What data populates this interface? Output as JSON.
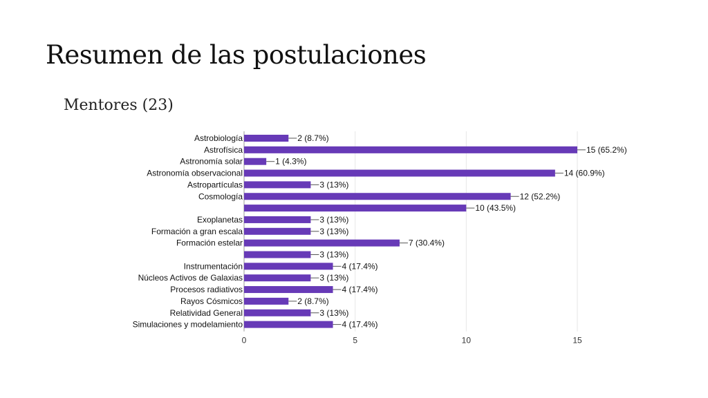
{
  "slide": {
    "title": "Resumen de las postulaciones",
    "subtitle": "Mentores (23)"
  },
  "colors": {
    "bar": "#673ab7",
    "grid": "#e6e6e6",
    "axis": "#999999",
    "text": "#111111"
  },
  "chart_data": {
    "type": "bar",
    "orientation": "horizontal",
    "title": "",
    "xlabel": "",
    "ylabel": "",
    "xlim": [
      0,
      15
    ],
    "x_ticks": [
      0,
      5,
      10,
      15
    ],
    "grid": true,
    "legend": "none",
    "categories": [
      "Astrobiología",
      "Astrofísica",
      "Astronomía solar",
      "Astronomía observacional",
      "Astropartículas",
      "Cosmología",
      "",
      "Exoplanetas",
      "Formación a gran escala",
      "Formación estelar",
      "",
      "Instrumentación",
      "Núcleos Activos de Galaxias",
      "Procesos radiativos",
      "Rayos Cósmicos",
      "Relatividad General",
      "Simulaciones y modelamiento"
    ],
    "values": [
      2,
      15,
      1,
      14,
      3,
      12,
      10,
      3,
      3,
      7,
      3,
      4,
      3,
      4,
      2,
      3,
      4
    ],
    "data_labels": [
      "2 (8.7%)",
      "15 (65.2%)",
      "1 (4.3%)",
      "14 (60.9%)",
      "3 (13%)",
      "12 (52.2%)",
      "10 (43.5%)",
      "3 (13%)",
      "3 (13%)",
      "7 (30.4%)",
      "3 (13%)",
      "4 (17.4%)",
      "3 (13%)",
      "4 (17.4%)",
      "2 (8.7%)",
      "3 (13%)",
      "4 (17.4%)"
    ]
  }
}
